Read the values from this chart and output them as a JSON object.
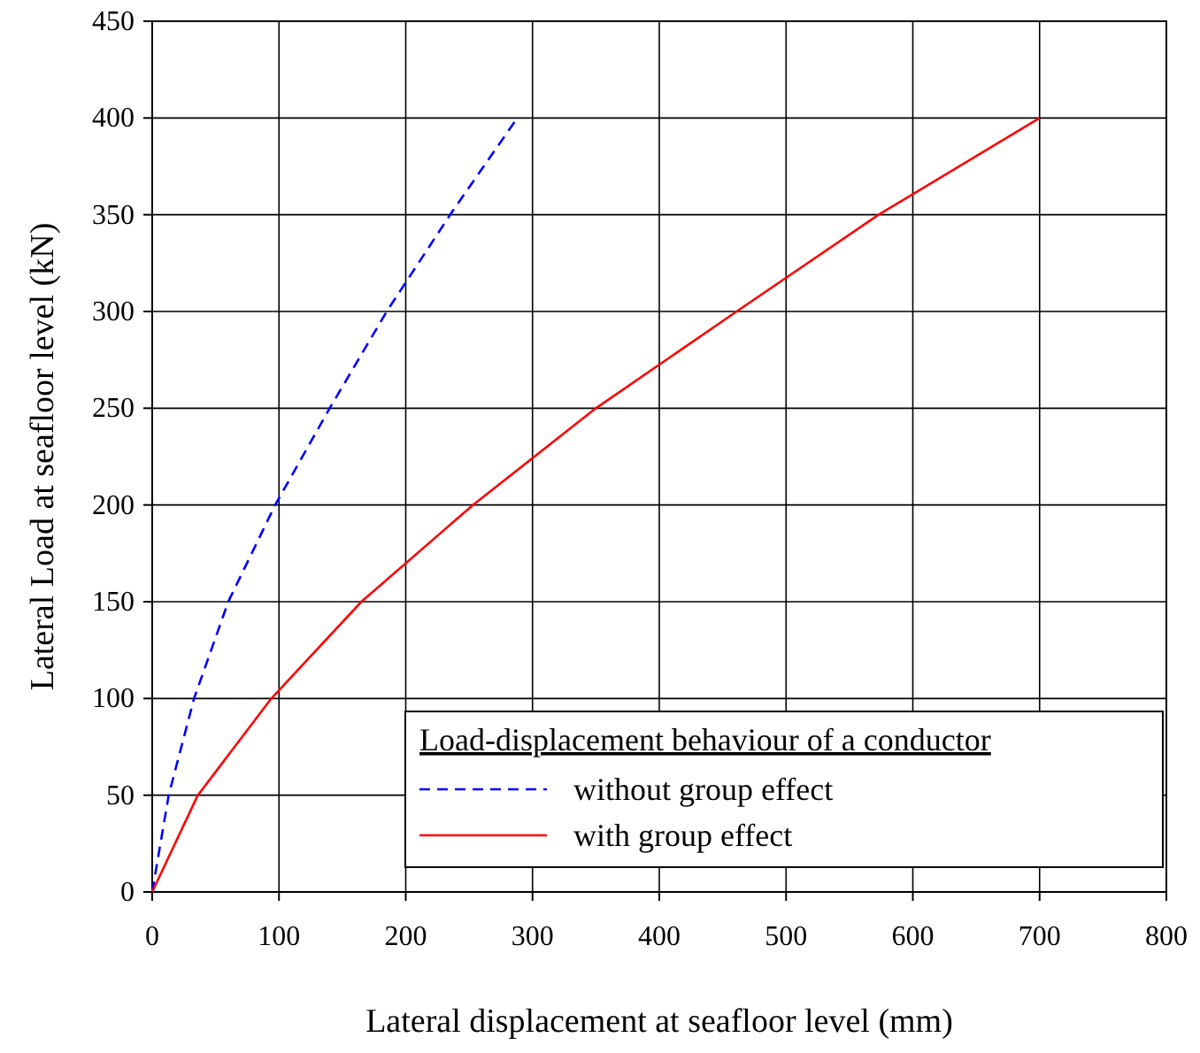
{
  "chart_data": {
    "type": "line",
    "xlabel": "Lateral displacement at seafloor level (mm)",
    "ylabel": "Lateral Load at seafloor level (kN)",
    "legend_title": "Load-displacement behaviour of a conductor",
    "xlim": [
      0,
      800
    ],
    "xticks": [
      0,
      100,
      200,
      300,
      400,
      500,
      600,
      700,
      800
    ],
    "ylim": [
      0,
      450
    ],
    "yticks": [
      0,
      50,
      100,
      150,
      200,
      250,
      300,
      350,
      400,
      450
    ],
    "grid": true,
    "legend": "bottom right",
    "series": [
      {
        "name": "without group effect",
        "color": "#0000ff",
        "line_style": "dashed",
        "x": [
          0,
          13,
          33,
          60,
          97,
          140,
          185,
          235,
          288
        ],
        "values": [
          0,
          50,
          100,
          150,
          200,
          250,
          300,
          350,
          400
        ]
      },
      {
        "name": "with group effect",
        "color": "#ff0000",
        "line_style": "solid",
        "x": [
          0,
          36,
          94,
          165,
          253,
          350,
          461,
          573,
          700
        ],
        "values": [
          0,
          50,
          100,
          150,
          200,
          250,
          300,
          350,
          400
        ]
      }
    ]
  }
}
